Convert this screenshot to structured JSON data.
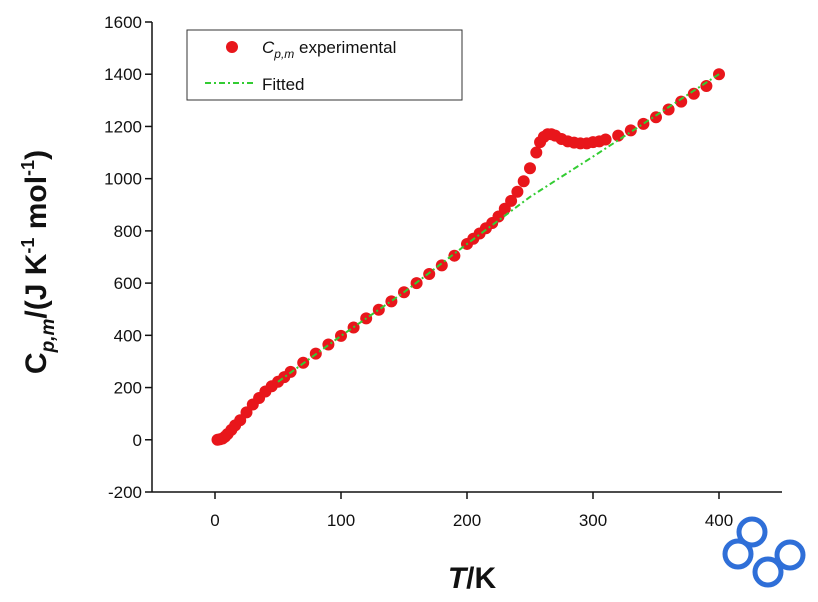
{
  "chart_data": {
    "type": "scatter",
    "x_label_parts": [
      "T",
      "/K"
    ],
    "y_label_parts": [
      "C",
      "p,m",
      "/(J K",
      "-1",
      " mol",
      "-1",
      ")"
    ],
    "xlim": [
      -50,
      450
    ],
    "ylim": [
      -200,
      1600
    ],
    "xticks": [
      0,
      100,
      200,
      300,
      400
    ],
    "yticks": [
      -200,
      0,
      200,
      400,
      600,
      800,
      1000,
      1200,
      1400,
      1600
    ],
    "series": [
      {
        "name_parts": [
          "C",
          "p,m",
          " experimental"
        ],
        "kind": "scatter",
        "color": "#e8161b",
        "x": [
          2,
          4,
          6,
          8,
          10,
          13,
          16,
          20,
          25,
          30,
          35,
          40,
          45,
          50,
          55,
          60,
          70,
          80,
          90,
          100,
          110,
          120,
          130,
          140,
          150,
          160,
          170,
          180,
          190,
          200,
          205,
          210,
          215,
          220,
          225,
          230,
          235,
          240,
          245,
          250,
          255,
          258,
          261,
          264,
          267,
          270,
          275,
          280,
          285,
          290,
          295,
          300,
          305,
          310,
          320,
          330,
          340,
          350,
          360,
          370,
          380,
          390,
          400
        ],
        "values": [
          0,
          2,
          5,
          12,
          22,
          38,
          55,
          75,
          105,
          135,
          160,
          185,
          205,
          222,
          240,
          260,
          295,
          330,
          365,
          398,
          430,
          465,
          498,
          530,
          565,
          600,
          635,
          668,
          705,
          750,
          770,
          790,
          810,
          830,
          855,
          885,
          915,
          950,
          990,
          1040,
          1100,
          1140,
          1160,
          1170,
          1170,
          1165,
          1152,
          1143,
          1138,
          1135,
          1135,
          1140,
          1143,
          1150,
          1165,
          1185,
          1210,
          1235,
          1265,
          1295,
          1325,
          1355,
          1400
        ]
      },
      {
        "name_parts": [
          "Fitted"
        ],
        "kind": "line",
        "color": "#33cc33",
        "x": [
          50,
          100,
          150,
          200,
          250,
          305,
          400
        ],
        "values": [
          222,
          398,
          565,
          750,
          930,
          1100,
          1400
        ]
      }
    ]
  }
}
